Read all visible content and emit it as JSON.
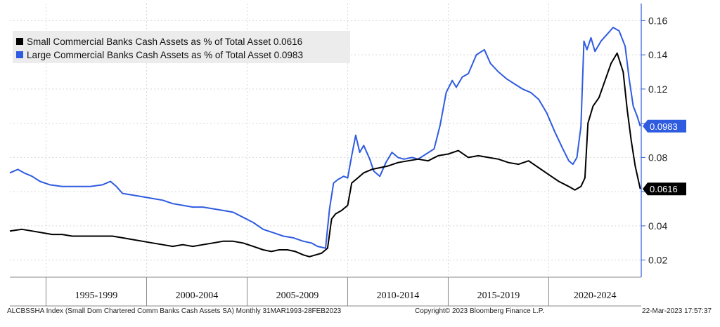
{
  "chart_data": {
    "type": "line",
    "legend": {
      "placement": "top-left"
    },
    "grid": true,
    "y_axis": {
      "side": "right",
      "ylim": [
        0.01,
        0.17
      ],
      "ticks": [
        0.02,
        0.04,
        0.06,
        0.08,
        0.1,
        0.12,
        0.14,
        0.16
      ],
      "tick_labels": [
        "0.02",
        "0.04",
        "0.06",
        "0.08",
        "",
        "0.12",
        "0.14",
        "0.16"
      ]
    },
    "x_axis": {
      "xlim": [
        1993.2,
        2024.6
      ],
      "period_boundaries": [
        1995.0,
        2000.0,
        2005.0,
        2010.0,
        2015.0,
        2020.0
      ],
      "periods": [
        {
          "label": "1995-1999",
          "from": 1995.0,
          "to": 2000.0
        },
        {
          "label": "2000-2004",
          "from": 2000.0,
          "to": 2005.0
        },
        {
          "label": "2005-2009",
          "from": 2005.0,
          "to": 2010.0
        },
        {
          "label": "2010-2014",
          "from": 2010.0,
          "to": 2015.0
        },
        {
          "label": "2015-2019",
          "from": 2015.0,
          "to": 2020.0
        },
        {
          "label": "2020-2024",
          "from": 2020.0,
          "to": 2024.6
        }
      ]
    },
    "series": [
      {
        "name": "Large Commercial Banks Cash Assets as % of Total Asset",
        "last_value_label": "0.0983",
        "color": "#2f5be0",
        "points": [
          [
            1993.2,
            0.071
          ],
          [
            1993.6,
            0.073
          ],
          [
            1993.9,
            0.071
          ],
          [
            1994.3,
            0.069
          ],
          [
            1994.7,
            0.066
          ],
          [
            1995.2,
            0.064
          ],
          [
            1995.8,
            0.063
          ],
          [
            1996.5,
            0.063
          ],
          [
            1997.2,
            0.063
          ],
          [
            1997.8,
            0.064
          ],
          [
            1998.2,
            0.066
          ],
          [
            1998.5,
            0.063
          ],
          [
            1998.8,
            0.059
          ],
          [
            1999.3,
            0.058
          ],
          [
            1999.8,
            0.057
          ],
          [
            2000.3,
            0.056
          ],
          [
            2000.8,
            0.055
          ],
          [
            2001.3,
            0.053
          ],
          [
            2001.8,
            0.052
          ],
          [
            2002.3,
            0.051
          ],
          [
            2002.8,
            0.051
          ],
          [
            2003.3,
            0.05
          ],
          [
            2003.8,
            0.049
          ],
          [
            2004.3,
            0.048
          ],
          [
            2004.8,
            0.045
          ],
          [
            2005.3,
            0.042
          ],
          [
            2005.8,
            0.038
          ],
          [
            2006.3,
            0.036
          ],
          [
            2006.8,
            0.034
          ],
          [
            2007.3,
            0.033
          ],
          [
            2007.8,
            0.031
          ],
          [
            2008.2,
            0.03
          ],
          [
            2008.5,
            0.028
          ],
          [
            2008.9,
            0.027
          ],
          [
            2009.1,
            0.05
          ],
          [
            2009.3,
            0.065
          ],
          [
            2009.5,
            0.067
          ],
          [
            2009.8,
            0.069
          ],
          [
            2010.0,
            0.068
          ],
          [
            2010.2,
            0.081
          ],
          [
            2010.4,
            0.093
          ],
          [
            2010.6,
            0.083
          ],
          [
            2010.8,
            0.087
          ],
          [
            2011.1,
            0.079
          ],
          [
            2011.3,
            0.072
          ],
          [
            2011.6,
            0.069
          ],
          [
            2011.9,
            0.077
          ],
          [
            2012.2,
            0.083
          ],
          [
            2012.5,
            0.08
          ],
          [
            2012.8,
            0.079
          ],
          [
            2013.2,
            0.08
          ],
          [
            2013.5,
            0.079
          ],
          [
            2013.9,
            0.082
          ],
          [
            2014.3,
            0.085
          ],
          [
            2014.6,
            0.099
          ],
          [
            2014.9,
            0.118
          ],
          [
            2015.2,
            0.125
          ],
          [
            2015.4,
            0.121
          ],
          [
            2015.7,
            0.127
          ],
          [
            2016.0,
            0.129
          ],
          [
            2016.4,
            0.14
          ],
          [
            2016.8,
            0.143
          ],
          [
            2017.1,
            0.135
          ],
          [
            2017.5,
            0.13
          ],
          [
            2017.9,
            0.126
          ],
          [
            2018.3,
            0.123
          ],
          [
            2018.7,
            0.12
          ],
          [
            2019.1,
            0.118
          ],
          [
            2019.5,
            0.114
          ],
          [
            2019.9,
            0.106
          ],
          [
            2020.3,
            0.095
          ],
          [
            2020.7,
            0.085
          ],
          [
            2021.0,
            0.078
          ],
          [
            2021.2,
            0.076
          ],
          [
            2021.4,
            0.08
          ],
          [
            2021.6,
            0.098
          ],
          [
            2021.75,
            0.148
          ],
          [
            2021.9,
            0.143
          ],
          [
            2022.1,
            0.15
          ],
          [
            2022.3,
            0.142
          ],
          [
            2022.6,
            0.148
          ],
          [
            2022.9,
            0.152
          ],
          [
            2023.2,
            0.156
          ],
          [
            2023.5,
            0.154
          ],
          [
            2023.8,
            0.145
          ],
          [
            2024.0,
            0.126
          ],
          [
            2024.2,
            0.11
          ],
          [
            2024.4,
            0.104
          ],
          [
            2024.55,
            0.0983
          ]
        ]
      },
      {
        "name": "Small Commercial Banks Cash Assets as % of Total Asset",
        "last_value_label": "0.0616",
        "color": "#000000",
        "points": [
          [
            1993.2,
            0.037
          ],
          [
            1993.8,
            0.038
          ],
          [
            1994.3,
            0.037
          ],
          [
            1994.8,
            0.036
          ],
          [
            1995.3,
            0.035
          ],
          [
            1995.8,
            0.035
          ],
          [
            1996.3,
            0.034
          ],
          [
            1996.8,
            0.034
          ],
          [
            1997.3,
            0.034
          ],
          [
            1997.8,
            0.034
          ],
          [
            1998.3,
            0.034
          ],
          [
            1998.8,
            0.033
          ],
          [
            1999.3,
            0.032
          ],
          [
            1999.8,
            0.031
          ],
          [
            2000.3,
            0.03
          ],
          [
            2000.8,
            0.029
          ],
          [
            2001.3,
            0.028
          ],
          [
            2001.8,
            0.029
          ],
          [
            2002.3,
            0.028
          ],
          [
            2002.8,
            0.029
          ],
          [
            2003.3,
            0.03
          ],
          [
            2003.8,
            0.031
          ],
          [
            2004.3,
            0.031
          ],
          [
            2004.8,
            0.03
          ],
          [
            2005.3,
            0.028
          ],
          [
            2005.8,
            0.026
          ],
          [
            2006.2,
            0.025
          ],
          [
            2006.6,
            0.026
          ],
          [
            2007.0,
            0.026
          ],
          [
            2007.4,
            0.025
          ],
          [
            2007.8,
            0.023
          ],
          [
            2008.1,
            0.022
          ],
          [
            2008.4,
            0.023
          ],
          [
            2008.7,
            0.024
          ],
          [
            2009.0,
            0.027
          ],
          [
            2009.2,
            0.044
          ],
          [
            2009.4,
            0.047
          ],
          [
            2009.7,
            0.049
          ],
          [
            2010.0,
            0.052
          ],
          [
            2010.2,
            0.065
          ],
          [
            2010.5,
            0.068
          ],
          [
            2010.8,
            0.071
          ],
          [
            2011.2,
            0.073
          ],
          [
            2011.6,
            0.074
          ],
          [
            2012.0,
            0.075
          ],
          [
            2012.5,
            0.077
          ],
          [
            2013.0,
            0.078
          ],
          [
            2013.5,
            0.079
          ],
          [
            2014.0,
            0.078
          ],
          [
            2014.5,
            0.081
          ],
          [
            2015.0,
            0.082
          ],
          [
            2015.5,
            0.084
          ],
          [
            2016.0,
            0.08
          ],
          [
            2016.5,
            0.081
          ],
          [
            2017.0,
            0.08
          ],
          [
            2017.5,
            0.079
          ],
          [
            2018.0,
            0.077
          ],
          [
            2018.5,
            0.076
          ],
          [
            2019.0,
            0.078
          ],
          [
            2019.5,
            0.074
          ],
          [
            2020.0,
            0.07
          ],
          [
            2020.5,
            0.066
          ],
          [
            2021.0,
            0.063
          ],
          [
            2021.3,
            0.061
          ],
          [
            2021.6,
            0.063
          ],
          [
            2021.8,
            0.068
          ],
          [
            2021.95,
            0.1
          ],
          [
            2022.2,
            0.11
          ],
          [
            2022.5,
            0.115
          ],
          [
            2022.8,
            0.125
          ],
          [
            2023.1,
            0.135
          ],
          [
            2023.4,
            0.141
          ],
          [
            2023.7,
            0.13
          ],
          [
            2023.9,
            0.108
          ],
          [
            2024.1,
            0.09
          ],
          [
            2024.3,
            0.075
          ],
          [
            2024.55,
            0.0616
          ]
        ]
      }
    ]
  },
  "legend": {
    "items": [
      {
        "label": "Small Commercial Banks Cash Assets as % of Total Asset 0.0616",
        "color": "#000000"
      },
      {
        "label": "Large Commercial Banks Cash Assets as % of Total Asset 0.0983",
        "color": "#2f5be0"
      }
    ]
  },
  "footer": {
    "left": "ALCBSSHA Index (Small Dom Chartered Comm Banks Cash Assets SA)  Monthly 31MAR1993-28FEB2023",
    "center": "Copyright© 2023 Bloomberg Finance L.P.",
    "right": "22-Mar-2023 17:57:37"
  }
}
